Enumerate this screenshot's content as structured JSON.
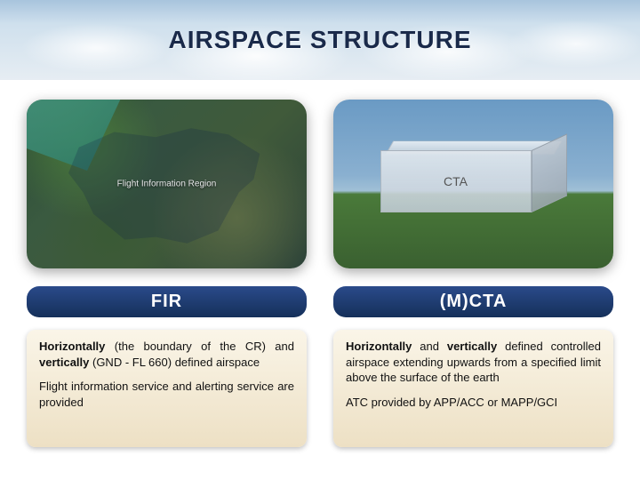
{
  "title": "AIRSPACE STRUCTURE",
  "colors": {
    "title_color": "#1a2a4a",
    "pill_bg_top": "#2a4a8a",
    "pill_bg_bottom": "#15305a",
    "desc_bg_top": "#faf5e8",
    "desc_bg_bottom": "#ede0c4"
  },
  "left": {
    "image_overlay_label": "Flight Information Region",
    "pill": "FIR",
    "desc": {
      "p1_prefix": "Horizontally",
      "p1_mid": " (the boundary of the CR) and ",
      "p1_kw2": "vertically",
      "p1_suffix": " (GND - FL 660) defined airspace",
      "p2": "Flight information service and alerting service are provided"
    }
  },
  "right": {
    "image_box_label": "CTA",
    "pill": "(M)CTA",
    "desc": {
      "p1_prefix": "Horizontally",
      "p1_mid": " and ",
      "p1_kw2": "vertically",
      "p1_suffix": " defined controlled airspace extending upwards from a specified limit above the surface of the earth",
      "p2": "ATC provided by APP/ACC or MAPP/GCI"
    }
  }
}
